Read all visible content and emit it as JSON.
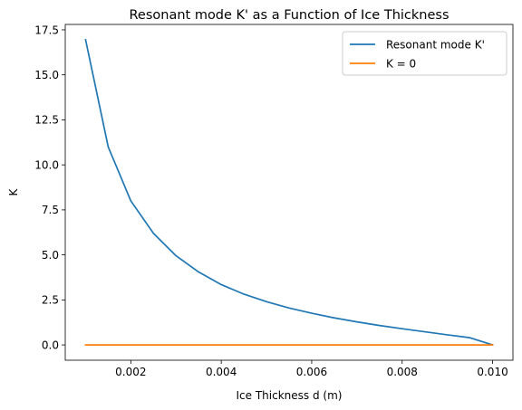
{
  "chart_data": {
    "type": "line",
    "title": "Resonant mode K' as a Function of Ice Thickness",
    "xlabel": "Ice Thickness d (m)",
    "ylabel": "K",
    "xlim": [
      0.00055,
      0.01045
    ],
    "ylim": [
      -0.85,
      17.8
    ],
    "xticks": [
      0.002,
      0.004,
      0.006,
      0.008,
      0.01
    ],
    "xtick_labels": [
      "0.002",
      "0.004",
      "0.006",
      "0.008",
      "0.010"
    ],
    "yticks": [
      0.0,
      2.5,
      5.0,
      7.5,
      10.0,
      12.5,
      15.0,
      17.5
    ],
    "ytick_labels": [
      "0.0",
      "2.5",
      "5.0",
      "7.5",
      "10.0",
      "12.5",
      "15.0",
      "17.5"
    ],
    "grid": false,
    "legend_position": "top-right",
    "series": [
      {
        "name": "Resonant mode K'",
        "color": "#1f77b4",
        "x": [
          0.001,
          0.0015,
          0.002,
          0.0025,
          0.003,
          0.0035,
          0.004,
          0.0045,
          0.005,
          0.0055,
          0.006,
          0.0065,
          0.007,
          0.0075,
          0.008,
          0.0085,
          0.009,
          0.0095,
          0.01
        ],
        "y": [
          16.95,
          11.0,
          8.0,
          6.2,
          4.95,
          4.05,
          3.35,
          2.82,
          2.4,
          2.05,
          1.76,
          1.5,
          1.28,
          1.08,
          0.9,
          0.73,
          0.56,
          0.4,
          0.0
        ]
      },
      {
        "name": "K = 0",
        "color": "#ff7f0e",
        "x": [
          0.001,
          0.01
        ],
        "y": [
          0.0,
          0.0
        ]
      }
    ]
  }
}
